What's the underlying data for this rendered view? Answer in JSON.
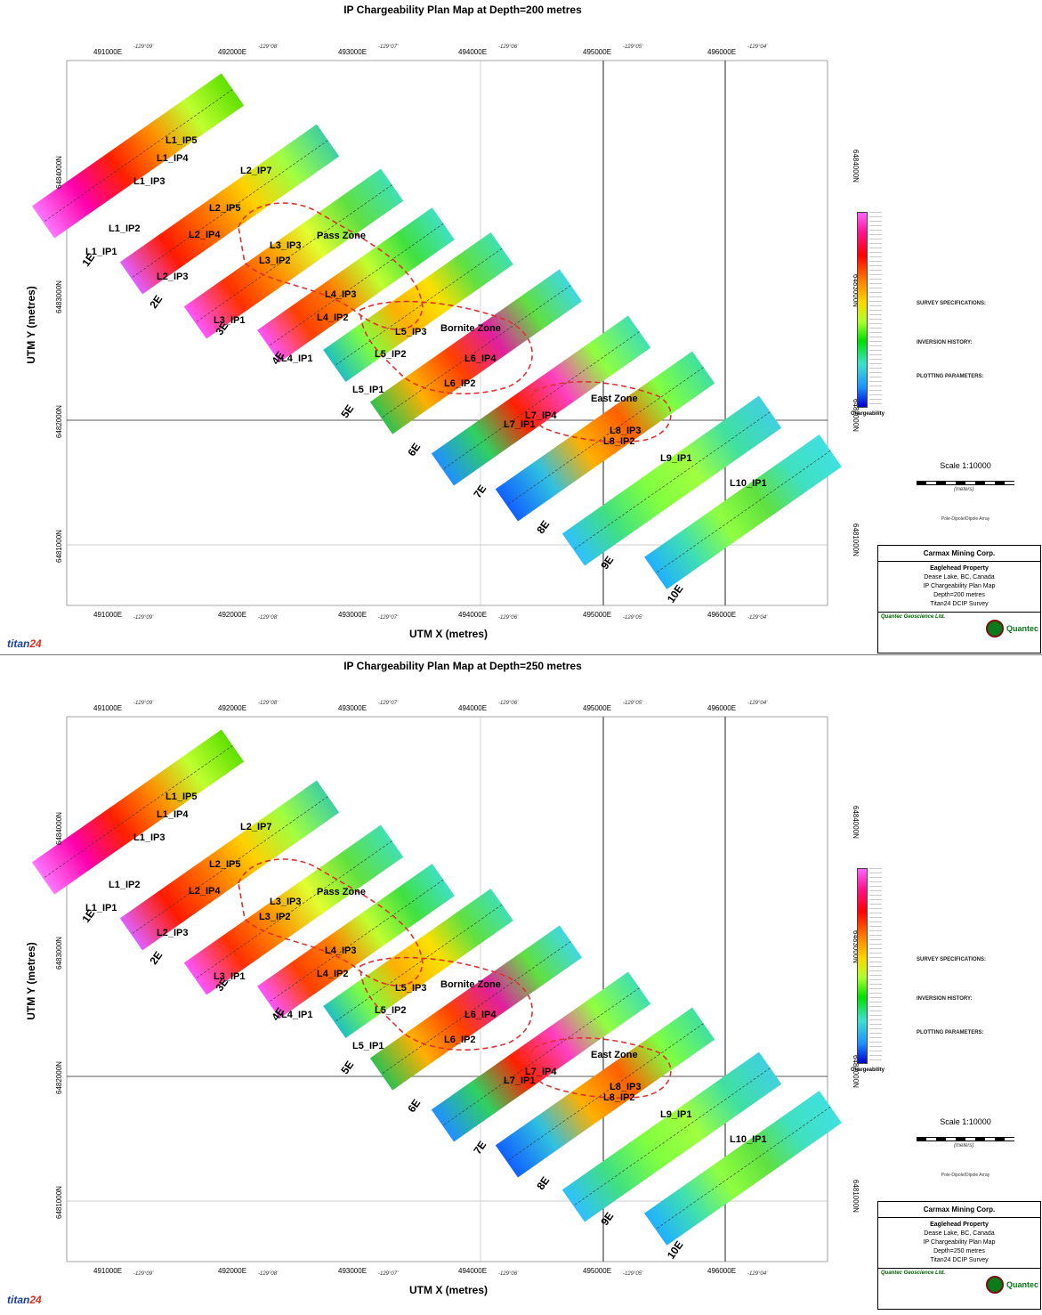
{
  "panels": [
    {
      "title": "IP Chargeability Plan Map at Depth=200 metres",
      "depth_text": "Depth=200 metres",
      "labels": [
        "L1_IP5",
        "L1_IP4",
        "L1_IP3",
        "L1_IP2",
        "L1_IP1",
        "L2_IP7",
        "L2_IP5",
        "L2_IP4",
        "L2_IP3",
        "L3_IP3",
        "L3_IP2",
        "L3_IP1",
        "L4_IP3",
        "L4_IP2",
        "L4_IP1",
        "L5_IP3",
        "L5_IP2",
        "L5_IP1",
        "L6_IP4",
        "L6_IP2",
        "L7_IP4",
        "L7_IP1",
        "L8_IP3",
        "L8_IP2",
        "L9_IP1",
        "L10_IP1"
      ],
      "zones": [
        "Pass Zone",
        "Bornite Zone",
        "East Zone"
      ]
    },
    {
      "title": "IP Chargeability Plan Map at Depth=250 metres",
      "depth_text": "Depth=250 metres",
      "labels": [
        "L1_IP5",
        "L1_IP4",
        "L1_IP3",
        "L1_IP2",
        "L1_IP1",
        "L2_IP7",
        "L2_IP5",
        "L2_IP4",
        "L2_IP3",
        "L3_IP3",
        "L3_IP2",
        "L3_IP1",
        "L4_IP3",
        "L4_IP2",
        "L4_IP1",
        "L5_IP3",
        "L5_IP2",
        "L5_IP1",
        "L6_IP4",
        "L6_IP2",
        "L7_IP4",
        "L7_IP1",
        "L8_IP3",
        "L8_IP2",
        "L9_IP1",
        "L10_IP1"
      ],
      "zones": [
        "Pass Zone",
        "Bornite Zone",
        "East Zone"
      ]
    }
  ],
  "axes": {
    "x_title": "UTM X (metres)",
    "y_title": "UTM Y (metres)",
    "x_ticks": [
      "491000E",
      "492000E",
      "493000E",
      "494000E",
      "495000E",
      "496000E"
    ],
    "y_ticks": [
      "6484000N",
      "6483000N",
      "6482000N",
      "6481000N"
    ],
    "lon_ticks": [
      "-129°09'",
      "-129°08'",
      "-129°07'",
      "-129°06'",
      "-129°05'",
      "-129°04'"
    ]
  },
  "lines": [
    "1E",
    "2E",
    "3E",
    "4E",
    "5E",
    "6E",
    "7E",
    "8E",
    "9E",
    "10E"
  ],
  "legend": {
    "colorbar_title": "Chargeability",
    "survey_specs_title": "SURVEY SPECIFICATIONS:",
    "inversion_title": "INVERSION HISTORY:",
    "plotting_title": "PLOTTING PARAMETERS:",
    "scale": "Scale 1:10000",
    "scale_units": "(meters)",
    "array": "Pole-Dipole/Dipole Array"
  },
  "titlebox": {
    "client": "Carmax Mining Corp.",
    "property": "Eaglehead Property",
    "location": "Dease Lake, BC, Canada",
    "map_type": "IP Chargeability Plan Map",
    "survey": "Titan24 DCIP Survey",
    "company": "Quantec Geoscience Ltd.",
    "logo_text": "Quantec"
  },
  "brand": {
    "prefix": "titan",
    "suffix": "24"
  },
  "colors": {
    "zone_outline": "#e03030",
    "high": "#ff00ff",
    "low": "#0000cd"
  }
}
